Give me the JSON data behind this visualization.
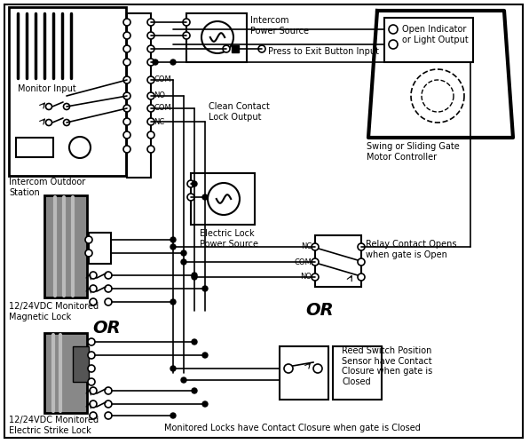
{
  "bg_color": "#ffffff",
  "line_color": "#000000",
  "lw": 1.2,
  "lw_thick": 2.0,
  "lw_border": 1.5,
  "labels": {
    "monitor_input": "Monitor Input",
    "intercom_outdoor": "Intercom Outdoor\nStation",
    "intercom_power": "Intercom\nPower Source",
    "press_exit": "Press to Exit Button Input",
    "clean_contact": "Clean Contact\nLock Output",
    "electric_lock": "Electric Lock\nPower Source",
    "magnetic_lock": "12/24VDC Monitored\nMagnetic Lock",
    "electric_strike": "12/24VDC Monitored\nElectric Strike Lock",
    "swing_gate": "Swing or Sliding Gate\nMotor Controller",
    "open_indicator": "Open Indicator\nor Light Output",
    "relay_contact": "Relay Contact Opens\nwhen gate is Open",
    "reed_switch": "Reed Switch Position\nSensor have Contact\nClosure when gate is\nClosed",
    "monitored_locks": "Monitored Locks have Contact Closure when gate is Closed",
    "or1": "OR",
    "or2": "OR",
    "nc": "NC",
    "com": "COM",
    "no": "NO"
  },
  "gray_dark": "#555555",
  "gray_mid": "#888888",
  "gray_light": "#bbbbbb"
}
